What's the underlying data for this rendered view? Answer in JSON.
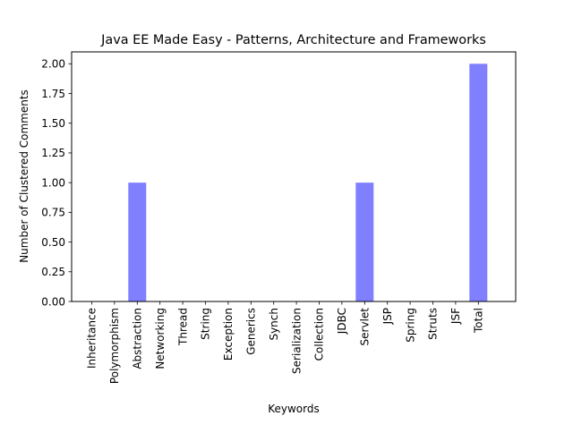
{
  "chart_data": {
    "type": "bar",
    "title": "Java EE Made Easy - Patterns, Architecture and Frameworks",
    "xlabel": "Keywords",
    "ylabel": "Number of Clustered Comments",
    "categories": [
      "Inheritance",
      "Polymorphism",
      "Abstraction",
      "Networking",
      "Thread",
      "String",
      "Exception",
      "Generics",
      "Synch",
      "Serialization",
      "Collection",
      "JDBC",
      "Servlet",
      "JSP",
      "Spring",
      "Struts",
      "JSF",
      "Total"
    ],
    "values": [
      0,
      0,
      1,
      0,
      0,
      0,
      0,
      0,
      0,
      0,
      0,
      0,
      1,
      0,
      0,
      0,
      0,
      2
    ],
    "ylim": [
      0,
      2.1
    ],
    "yticks": [
      "0.00",
      "0.25",
      "0.50",
      "0.75",
      "1.00",
      "1.25",
      "1.50",
      "1.75",
      "2.00"
    ],
    "bar_color": "#8080ff",
    "grid": false,
    "legend": "none"
  }
}
